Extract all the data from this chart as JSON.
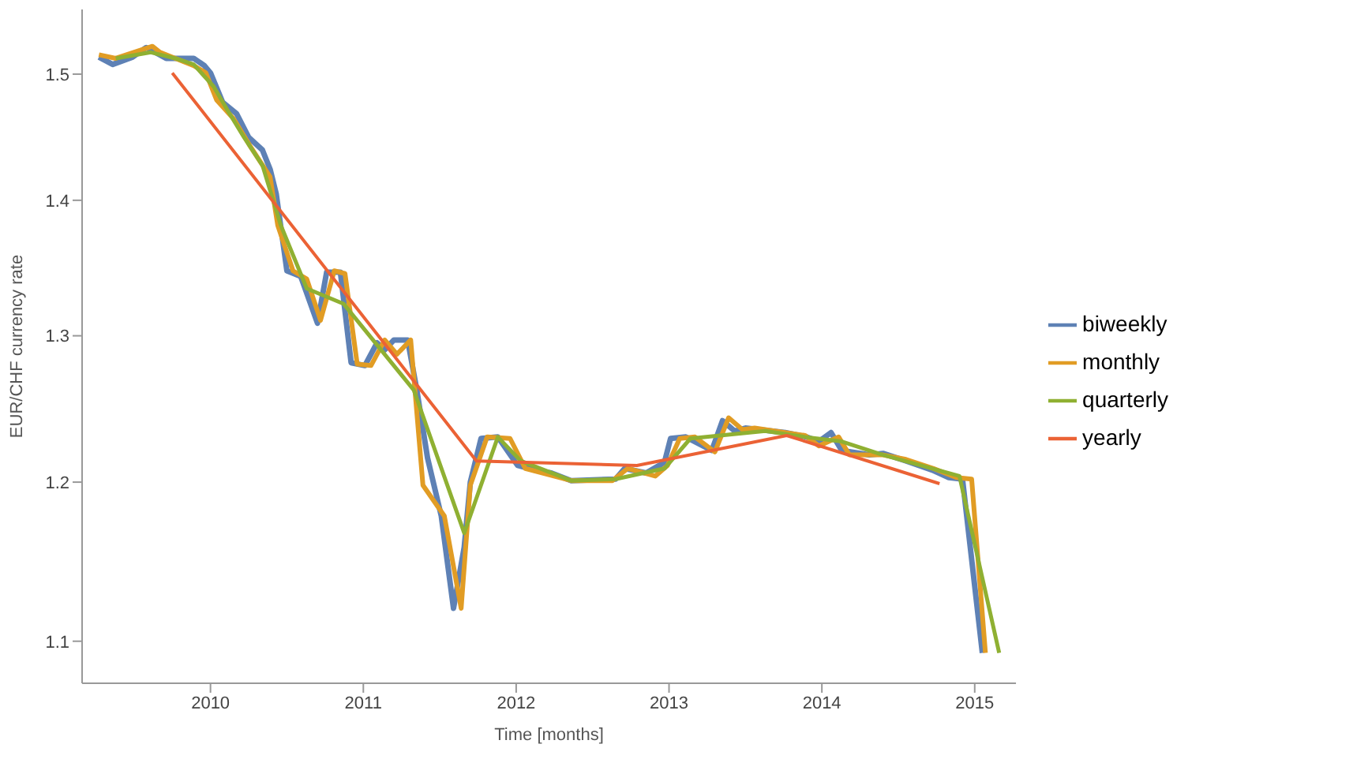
{
  "chart_data": {
    "type": "line",
    "xlabel": "Time [months]",
    "ylabel": "EUR/CHF currency rate",
    "xlim": [
      2009.16,
      2015.27
    ],
    "xticks": [
      2010,
      2011,
      2012,
      2013,
      2014,
      2015
    ],
    "ylim": [
      1.075,
      1.554
    ],
    "yticks": [
      1.1,
      1.2,
      1.3,
      1.4,
      1.5
    ],
    "log": "y",
    "grid": false,
    "legend": "right",
    "line_style": "solid",
    "series": [
      {
        "name": "biweekly",
        "color": "#5e81b5",
        "x": [
          2009.27,
          2009.36,
          2009.49,
          2009.58,
          2009.71,
          2009.89,
          2009.96,
          2010.0,
          2010.08,
          2010.17,
          2010.25,
          2010.34,
          2010.39,
          2010.43,
          2010.5,
          2010.59,
          2010.7,
          2010.76,
          2010.85,
          2010.92,
          2011.01,
          2011.09,
          2011.14,
          2011.2,
          2011.29,
          2011.35,
          2011.42,
          2011.51,
          2011.59,
          2011.66,
          2011.7,
          2011.77,
          2011.88,
          2012.01,
          2012.12,
          2012.23,
          2012.36,
          2012.65,
          2012.71,
          2012.85,
          2012.97,
          2013.01,
          2013.11,
          2013.28,
          2013.35,
          2013.43,
          2013.5,
          2013.76,
          2013.9,
          2013.98,
          2014.06,
          2014.13,
          2014.31,
          2014.4,
          2014.55,
          2014.72,
          2014.83,
          2014.92,
          2015.05
        ],
        "values": [
          1.514,
          1.508,
          1.514,
          1.522,
          1.513,
          1.513,
          1.507,
          1.501,
          1.477,
          1.468,
          1.449,
          1.439,
          1.424,
          1.405,
          1.347,
          1.343,
          1.309,
          1.346,
          1.346,
          1.281,
          1.279,
          1.295,
          1.29,
          1.297,
          1.297,
          1.262,
          1.216,
          1.178,
          1.12,
          1.158,
          1.2,
          1.229,
          1.23,
          1.211,
          1.208,
          1.206,
          1.201,
          1.202,
          1.209,
          1.206,
          1.213,
          1.229,
          1.23,
          1.221,
          1.241,
          1.234,
          1.236,
          1.233,
          1.23,
          1.227,
          1.233,
          1.221,
          1.218,
          1.219,
          1.214,
          1.208,
          1.203,
          1.202,
          1.093
        ]
      },
      {
        "name": "monthly",
        "color": "#e19c24",
        "x": [
          2009.27,
          2009.38,
          2009.62,
          2009.67,
          2009.89,
          2009.97,
          2010.04,
          2010.15,
          2010.26,
          2010.39,
          2010.44,
          2010.54,
          2010.63,
          2010.72,
          2010.81,
          2010.88,
          2010.96,
          2011.05,
          2011.14,
          2011.22,
          2011.31,
          2011.39,
          2011.53,
          2011.64,
          2011.7,
          2011.81,
          2011.96,
          2012.06,
          2012.36,
          2012.63,
          2012.73,
          2012.91,
          2012.99,
          2013.07,
          2013.17,
          2013.3,
          2013.39,
          2013.48,
          2013.56,
          2013.89,
          2013.98,
          2014.11,
          2014.18,
          2014.4,
          2014.55,
          2014.73,
          2014.88,
          2014.98,
          2015.07
        ],
        "values": [
          1.516,
          1.513,
          1.523,
          1.518,
          1.507,
          1.501,
          1.479,
          1.464,
          1.442,
          1.418,
          1.381,
          1.347,
          1.341,
          1.311,
          1.347,
          1.345,
          1.28,
          1.279,
          1.297,
          1.287,
          1.297,
          1.198,
          1.178,
          1.12,
          1.198,
          1.23,
          1.229,
          1.209,
          1.201,
          1.201,
          1.209,
          1.204,
          1.211,
          1.229,
          1.23,
          1.22,
          1.243,
          1.235,
          1.236,
          1.231,
          1.224,
          1.23,
          1.218,
          1.218,
          1.215,
          1.209,
          1.203,
          1.202,
          1.093
        ]
      },
      {
        "name": "quarterly",
        "color": "#8fb032",
        "x": [
          2009.38,
          2009.61,
          2009.77,
          2009.89,
          2010.02,
          2010.11,
          2010.22,
          2010.34,
          2010.46,
          2010.63,
          2010.87,
          2011.33,
          2011.66,
          2011.88,
          2012.03,
          2012.36,
          2012.65,
          2012.97,
          2013.14,
          2013.63,
          2013.89,
          2014.13,
          2014.4,
          2014.9,
          2015.16
        ],
        "values": [
          1.513,
          1.518,
          1.513,
          1.508,
          1.49,
          1.471,
          1.449,
          1.427,
          1.381,
          1.334,
          1.323,
          1.262,
          1.167,
          1.23,
          1.214,
          1.201,
          1.202,
          1.209,
          1.229,
          1.234,
          1.23,
          1.227,
          1.218,
          1.204,
          1.093
        ]
      },
      {
        "name": "yearly",
        "color": "#eb6235",
        "x": [
          2009.75,
          2011.74,
          2012.79,
          2013.77,
          2014.77
        ],
        "values": [
          1.501,
          1.214,
          1.211,
          1.231,
          1.199
        ]
      }
    ]
  }
}
